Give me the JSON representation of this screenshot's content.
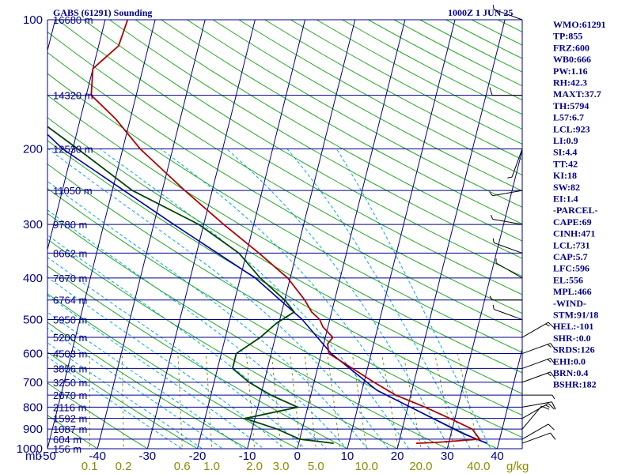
{
  "header": {
    "station": "GABS (61291) Sounding",
    "time": "1000Z  1 JUN 25"
  },
  "indices": [
    "WMO:61291",
    "TP:855",
    "FRZ:600",
    "WB0:666",
    "PW:1.16",
    "RH:42.3",
    "MAXT:37.7",
    "TH:5794",
    "L57:6.7",
    "LCL:923",
    "LI:0.9",
    "SI:4.4",
    "TT:42",
    "KI:18",
    "SW:82",
    "EI:1.4",
    "-PARCEL-",
    "CAPE:69",
    "CINH:471",
    "LCL:731",
    "CAP:5.7",
    "LFC:596",
    "EL:556",
    "MPL:466",
    "-WIND-",
    "STM:91/18",
    "HEL:-101",
    "SHR-:0.0",
    "SRDS:126",
    "EHI:0.0",
    "BRN:0.4",
    "BSHR:182"
  ],
  "colors": {
    "axis": "#00008b",
    "isobar": "#00008b",
    "isotherm": "#00008b",
    "dry_adiabat": "#22aa22",
    "moist_adiabat": "#00aaee",
    "mixing_ratio": "#8b8b00",
    "temperature": "#b00000",
    "dewpoint": "#004400",
    "parcel": "#0000aa",
    "wind": "#000000"
  },
  "chart_data": {
    "type": "skew-t",
    "pressure_unit": "mb",
    "mixing_ratio_unit": "g/kg",
    "pressure_levels": [
      {
        "p": 100,
        "label": "100",
        "height": "16680 m"
      },
      {
        "p": 150,
        "label": "",
        "height": "14320 m"
      },
      {
        "p": 200,
        "label": "200",
        "height": "12530 m"
      },
      {
        "p": 250,
        "label": "",
        "height": "11050 m"
      },
      {
        "p": 300,
        "label": "300",
        "height": "9780 m"
      },
      {
        "p": 350,
        "label": "",
        "height": "8662 m"
      },
      {
        "p": 400,
        "label": "400",
        "height": "7670 m"
      },
      {
        "p": 450,
        "label": "",
        "height": "6764 m"
      },
      {
        "p": 500,
        "label": "500",
        "height": "5950 m"
      },
      {
        "p": 550,
        "label": "",
        "height": "5200 m"
      },
      {
        "p": 600,
        "label": "600",
        "height": "4503 m"
      },
      {
        "p": 650,
        "label": "",
        "height": "3856 m"
      },
      {
        "p": 700,
        "label": "700",
        "height": "3250 m"
      },
      {
        "p": 750,
        "label": "",
        "height": "2670 m"
      },
      {
        "p": 800,
        "label": "800",
        "height": "2116 m"
      },
      {
        "p": 850,
        "label": "",
        "height": "1592 m"
      },
      {
        "p": 900,
        "label": "900",
        "height": "1087 m"
      },
      {
        "p": 950,
        "label": "",
        "height": "604 m"
      },
      {
        "p": 1000,
        "label": "1000",
        "height": "156 m"
      }
    ],
    "temperature_ticks": [
      "-50",
      "-40",
      "-30",
      "-20",
      "-10",
      "0",
      "10",
      "20",
      "30",
      "40"
    ],
    "mixing_ratio_ticks": [
      "0.1",
      "0.2",
      "0.6",
      "1.0",
      "2.0",
      "3.0",
      "5.0",
      "10.0",
      "20.0",
      "40.0"
    ],
    "temperature_profile": [
      [
        971,
        23.5
      ],
      [
        967,
        27.3
      ],
      [
        950,
        36.0
      ],
      [
        900,
        34.0
      ],
      [
        850,
        29.0
      ],
      [
        800,
        23.5
      ],
      [
        750,
        17.0
      ],
      [
        700,
        12.0
      ],
      [
        650,
        7.0
      ],
      [
        600,
        1.5
      ],
      [
        570,
        0.8
      ],
      [
        550,
        1.5
      ],
      [
        520,
        -1.0
      ],
      [
        500,
        -2.0
      ],
      [
        480,
        -4.0
      ],
      [
        450,
        -6.0
      ],
      [
        400,
        -10.5
      ],
      [
        350,
        -17.5
      ],
      [
        300,
        -26.0
      ],
      [
        250,
        -35.5
      ],
      [
        200,
        -46.5
      ],
      [
        170,
        -53.0
      ],
      [
        150,
        -59.0
      ],
      [
        130,
        -60.0
      ],
      [
        115,
        -56.0
      ],
      [
        100,
        -55.5
      ]
    ],
    "dewpoint_profile": [
      [
        971,
        7.0
      ],
      [
        950,
        0.0
      ],
      [
        900,
        -5.0
      ],
      [
        850,
        -12.0
      ],
      [
        800,
        -2.0
      ],
      [
        750,
        -8.0
      ],
      [
        700,
        -13.0
      ],
      [
        650,
        -17.0
      ],
      [
        600,
        -17.0
      ],
      [
        550,
        -13.0
      ],
      [
        510,
        -10.5
      ],
      [
        480,
        -7.5
      ],
      [
        450,
        -10.0
      ],
      [
        400,
        -16.0
      ],
      [
        350,
        -21.5
      ],
      [
        300,
        -31.0
      ],
      [
        250,
        -46.0
      ],
      [
        200,
        -59.0
      ],
      [
        175,
        -67.0
      ],
      [
        150,
        -73.0
      ],
      [
        125,
        -78.0
      ],
      [
        100,
        -87.0
      ]
    ],
    "parcel_profile": [
      [
        971,
        37.7
      ],
      [
        923,
        32.5
      ],
      [
        731,
        13.0
      ],
      [
        600,
        2.0
      ],
      [
        500,
        -5.5
      ],
      [
        400,
        -17.0
      ],
      [
        300,
        -36.0
      ],
      [
        200,
        -62.0
      ],
      [
        130,
        -83.0
      ]
    ],
    "wind_barbs": [
      {
        "p": 971,
        "dir": 70,
        "spd": 10
      },
      {
        "p": 950,
        "dir": 60,
        "spd": 10
      },
      {
        "p": 900,
        "dir": 40,
        "spd": 10
      },
      {
        "p": 850,
        "dir": 60,
        "spd": 15
      },
      {
        "p": 800,
        "dir": 80,
        "spd": 10
      },
      {
        "p": 750,
        "dir": 90,
        "spd": 5
      },
      {
        "p": 700,
        "dir": 70,
        "spd": 15
      },
      {
        "p": 650,
        "dir": 70,
        "spd": 15
      },
      {
        "p": 600,
        "dir": 70,
        "spd": 15
      },
      {
        "p": 550,
        "dir": 60,
        "spd": 15
      },
      {
        "p": 500,
        "dir": 290,
        "spd": 5
      },
      {
        "p": 450,
        "dir": 270,
        "spd": 5
      },
      {
        "p": 400,
        "dir": 300,
        "spd": 5
      },
      {
        "p": 350,
        "dir": 290,
        "spd": 5
      },
      {
        "p": 300,
        "dir": 280,
        "spd": 5
      },
      {
        "p": 250,
        "dir": 260,
        "spd": 5
      },
      {
        "p": 200,
        "dir": 200,
        "spd": 5
      },
      {
        "p": 150,
        "dir": 270,
        "spd": 10
      },
      {
        "p": 100,
        "dir": 290,
        "spd": 5
      }
    ]
  }
}
